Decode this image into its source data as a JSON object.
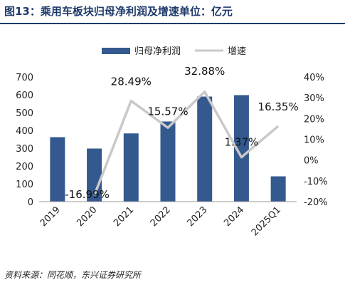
{
  "header": {
    "title": "图13：乘用车板块归母净利润及增速单位：亿元"
  },
  "footer": {
    "source": "资料来源：同花顺，东兴证券研究所"
  },
  "chart_data": {
    "type": "bar+line",
    "categories": [
      "2019",
      "2020",
      "2021",
      "2022",
      "2023",
      "2024",
      "2025Q1"
    ],
    "series": [
      {
        "name": "归母净利润",
        "type": "bar",
        "axis": "left",
        "color": "#34598f",
        "values": [
          362,
          298,
          383,
          450,
          590,
          598,
          142
        ]
      },
      {
        "name": "增速",
        "type": "line",
        "axis": "right",
        "color": "#c9c9c9",
        "values": [
          null,
          -16.99,
          28.49,
          15.57,
          32.88,
          1.37,
          16.35
        ],
        "labels": [
          "",
          "-16.99%",
          "28.49%",
          "15.57%",
          "32.88%",
          "1.37%",
          "16.35%"
        ]
      }
    ],
    "y_left": {
      "min": 0,
      "max": 700,
      "ticks": [
        0,
        100,
        200,
        300,
        400,
        500,
        600,
        700
      ]
    },
    "y_right": {
      "min": -20,
      "max": 40,
      "ticks": [
        "-20%",
        "-10%",
        "0%",
        "10%",
        "20%",
        "30%",
        "40%"
      ],
      "tick_values": [
        -20,
        -10,
        0,
        10,
        20,
        30,
        40
      ]
    },
    "legend": "top-center",
    "grid": false
  }
}
